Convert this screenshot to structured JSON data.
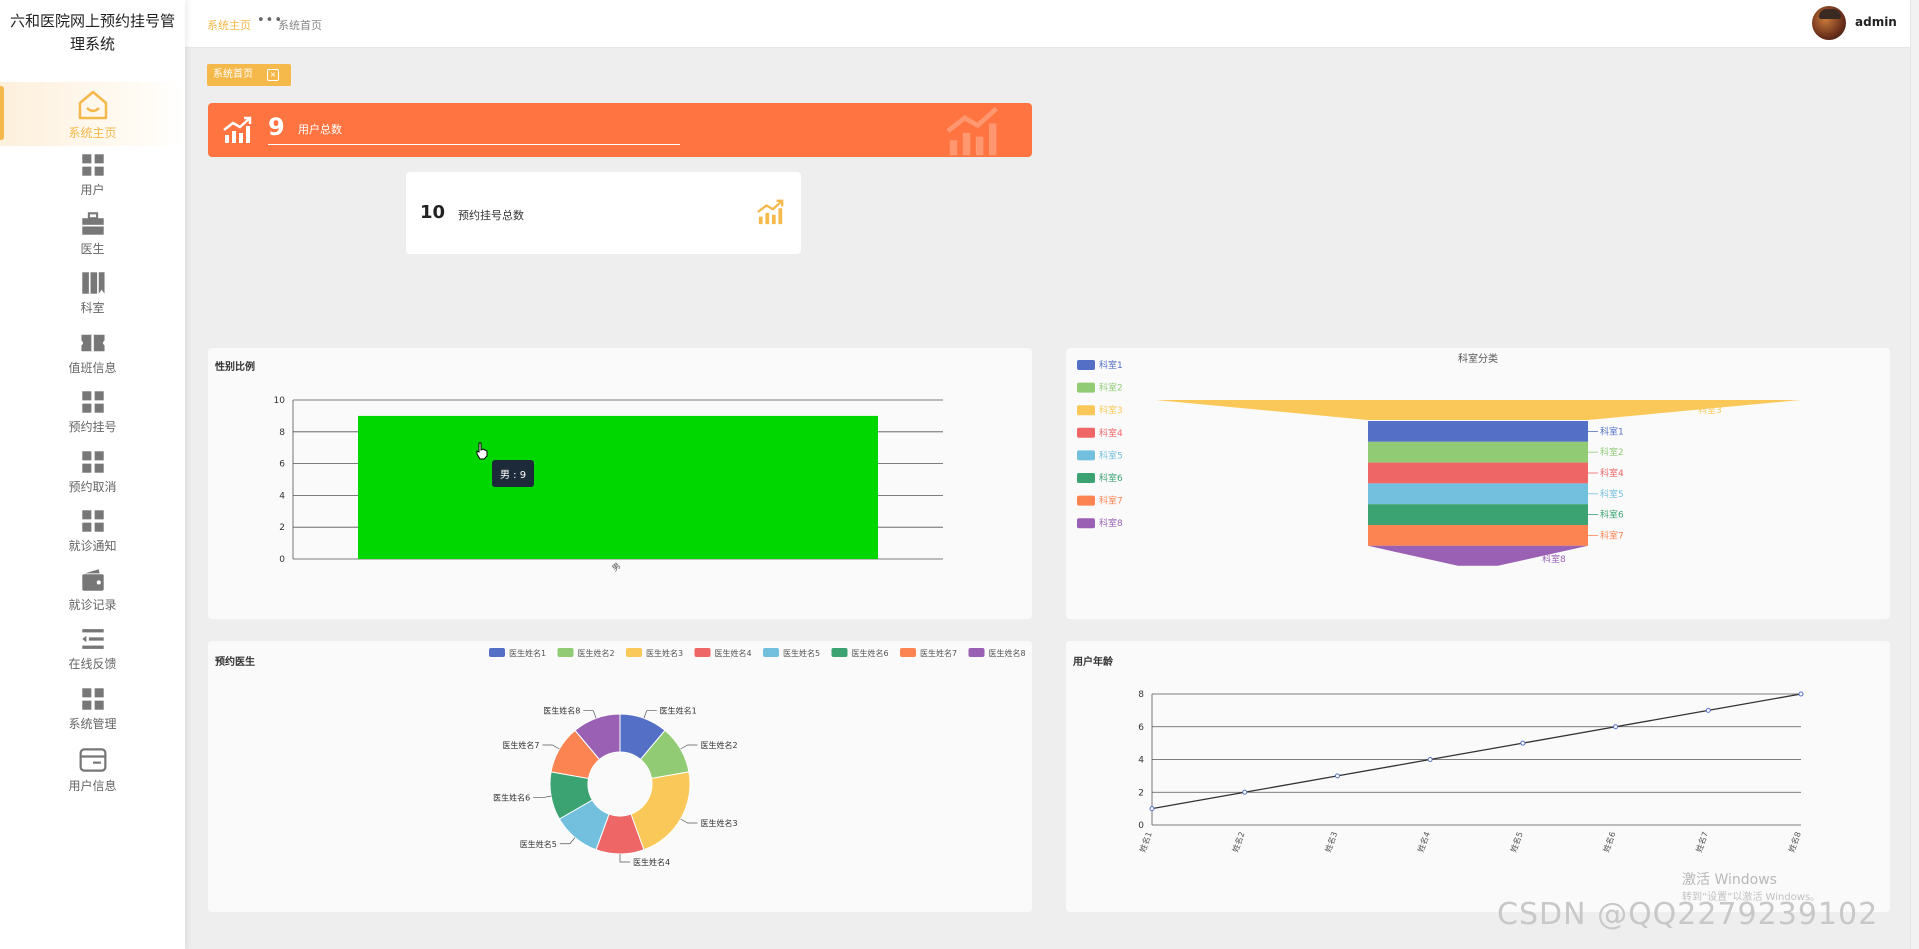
{
  "app": {
    "title": "六和医院网上预约挂号管理系统"
  },
  "sidebar": {
    "items": [
      {
        "label": "系统主页",
        "icon": "home-icon"
      },
      {
        "label": "用户",
        "icon": "grid-icon"
      },
      {
        "label": "医生",
        "icon": "briefcase-icon"
      },
      {
        "label": "科室",
        "icon": "bookmark-icon"
      },
      {
        "label": "值班信息",
        "icon": "ticket-icon"
      },
      {
        "label": "预约挂号",
        "icon": "grid-icon"
      },
      {
        "label": "预约取消",
        "icon": "grid-icon"
      },
      {
        "label": "就诊通知",
        "icon": "grid-icon"
      },
      {
        "label": "就诊记录",
        "icon": "wallet-icon"
      },
      {
        "label": "在线反馈",
        "icon": "list-icon"
      },
      {
        "label": "系统管理",
        "icon": "grid-icon"
      },
      {
        "label": "用户信息",
        "icon": "card-icon"
      }
    ]
  },
  "header": {
    "breadcrumb_home": "系统主页",
    "breadcrumb_more": "•••",
    "breadcrumb_current": "系统首页",
    "username": "admin"
  },
  "tag": {
    "label": "系统首页",
    "close": "×"
  },
  "stats": {
    "users_value": "9",
    "users_label": "用户总数",
    "appointments_value": "10",
    "appointments_label": "预约挂号总数"
  },
  "colors": {
    "accent": "#f5b84a",
    "orange": "#ff7440",
    "green": "#00d700"
  },
  "panels": {
    "gender_title": "性别比例",
    "dept_title": "科室分类",
    "doctor_title": "预约医生",
    "age_title": "用户年龄"
  },
  "tooltip": "男 : 9",
  "chart_data": [
    {
      "type": "bar",
      "title": "性别比例",
      "categories": [
        "男"
      ],
      "values": [
        9
      ],
      "ylim": [
        0,
        10
      ],
      "yticks": [
        0,
        2,
        4,
        6,
        8,
        10
      ],
      "grid": true
    },
    {
      "type": "funnel",
      "title": "科室分类",
      "categories": [
        "科室1",
        "科室2",
        "科室3",
        "科室4",
        "科室5",
        "科室6",
        "科室7",
        "科室8"
      ],
      "colors": [
        "#5470c6",
        "#91cc75",
        "#fac858",
        "#ee6666",
        "#73c0de",
        "#3ba272",
        "#fc8452",
        "#9a60b4"
      ],
      "legend": "left"
    },
    {
      "type": "pie",
      "title": "预约医生",
      "categories": [
        "医生姓名1",
        "医生姓名2",
        "医生姓名3",
        "医生姓名4",
        "医生姓名5",
        "医生姓名6",
        "医生姓名7",
        "医生姓名8"
      ],
      "values": [
        1,
        1,
        2,
        1,
        1,
        1,
        1,
        1
      ],
      "colors": [
        "#5470c6",
        "#91cc75",
        "#fac858",
        "#ee6666",
        "#73c0de",
        "#3ba272",
        "#fc8452",
        "#9a60b4"
      ],
      "legend": "top-right"
    },
    {
      "type": "line",
      "title": "用户年龄",
      "categories": [
        "姓名1",
        "姓名2",
        "姓名3",
        "姓名4",
        "姓名5",
        "姓名6",
        "姓名7",
        "姓名8"
      ],
      "values": [
        1,
        2,
        3,
        4,
        5,
        6,
        7,
        8
      ],
      "ylim": [
        0,
        8
      ],
      "yticks": [
        0,
        2,
        4,
        6,
        8
      ],
      "grid": true
    }
  ],
  "watermarks": {
    "windows": "激活 Windows",
    "windows_sub": "转到“设置”以激活 Windows。",
    "csdn": "CSDN @QQ2279239102"
  }
}
